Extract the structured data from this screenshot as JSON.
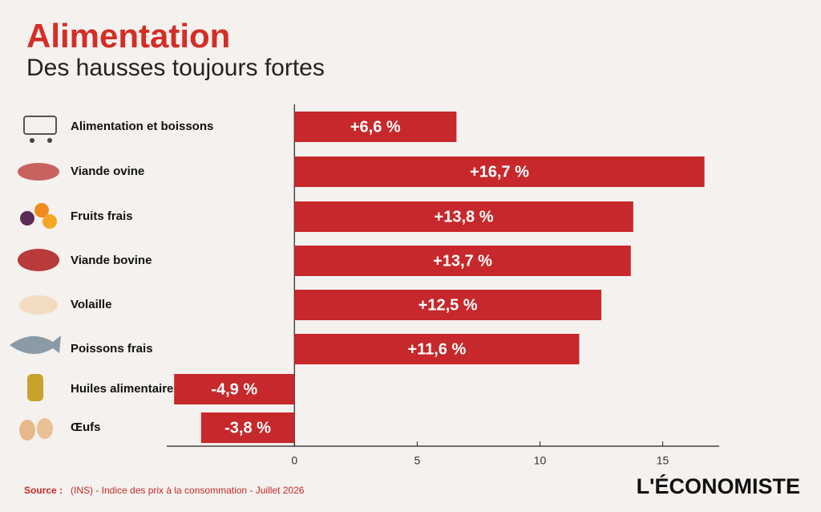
{
  "chart_data": {
    "type": "bar",
    "orientation": "horizontal",
    "title": "Alimentation",
    "subtitle": "Des hausses toujours fortes",
    "categories": [
      "Alimentation et boissons",
      "Viande ovine",
      "Fruits frais",
      "Viande bovine",
      "Volaille",
      "Poissons frais",
      "Huiles alimentaires",
      "Œufs"
    ],
    "values": [
      6.6,
      16.7,
      13.8,
      13.7,
      12.5,
      11.6,
      -4.9,
      -3.8
    ],
    "value_labels": [
      "+6,6 %",
      "+16,7 %",
      "+13,8 %",
      "+13,7 %",
      "+12,5 %",
      "+11,6 %",
      "-4,9 %",
      "-3,8 %"
    ],
    "color": "#c7282b",
    "xlim": [
      -5.2,
      17.3
    ],
    "xticks": [
      0,
      5,
      10,
      15
    ],
    "source_label": "Source :",
    "source": "(INS) - Indice des prix à la consommation - Juillet 2026",
    "logo": "L'ÉCONOMISTE"
  }
}
